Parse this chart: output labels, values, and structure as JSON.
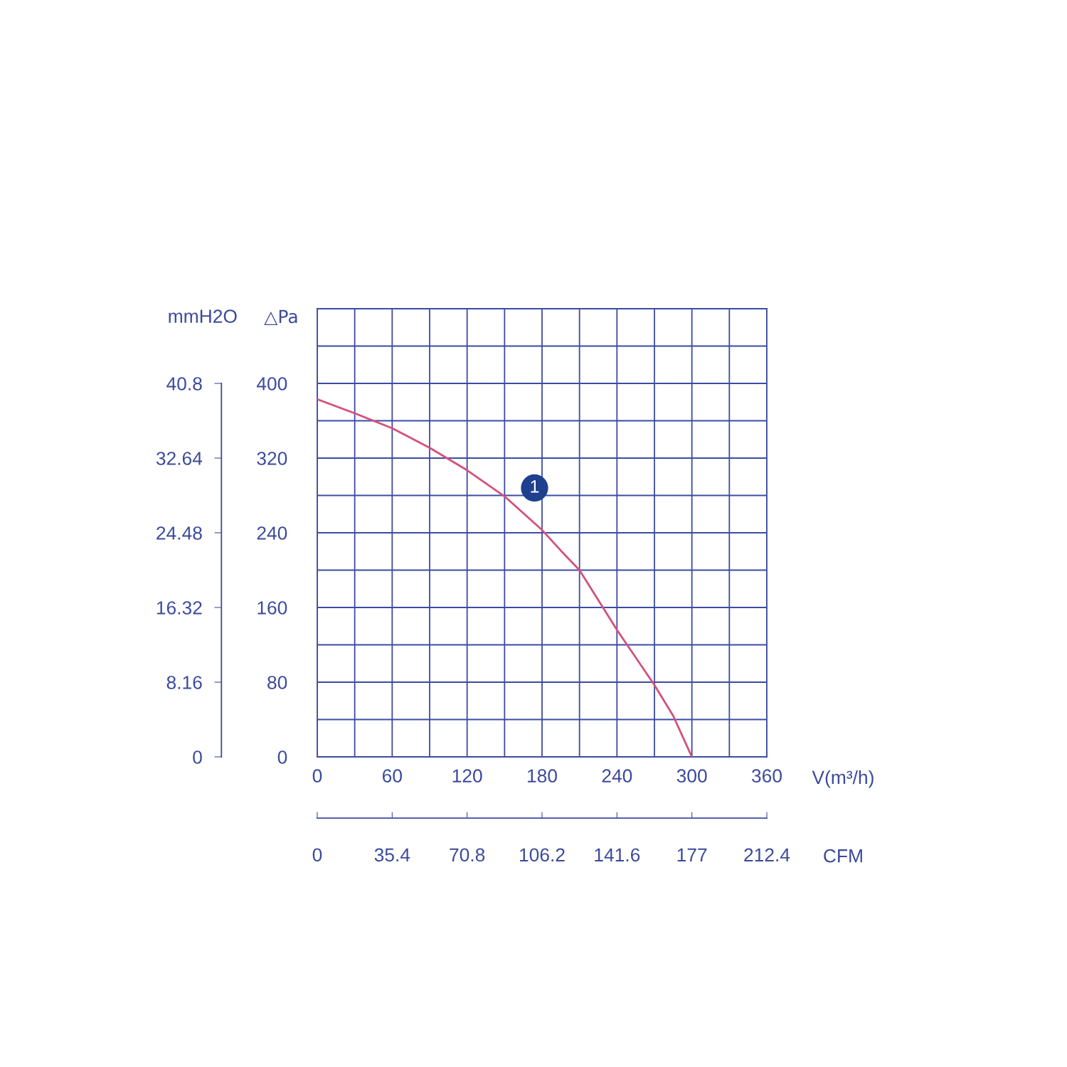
{
  "chart_data": {
    "type": "line",
    "xlabel": "V(m³/h)",
    "ylabel": "△Pa",
    "y2label": "mmH2O",
    "x2label": "CFM",
    "x": [
      0,
      30,
      60,
      90,
      120,
      150,
      180,
      195,
      210,
      240,
      270,
      285,
      300
    ],
    "series": [
      {
        "color": "#d4507c",
        "values": [
          383,
          368,
          352,
          331,
          307,
          279,
          243,
          221,
          200,
          136,
          77,
          44,
          0
        ]
      }
    ],
    "xlim": [
      0,
      360
    ],
    "xticks": [
      0,
      {
        "value": 30,
        "label": null
      },
      60,
      {
        "value": 90,
        "label": null
      },
      120,
      {
        "value": 150,
        "label": null
      },
      180,
      {
        "value": 210,
        "label": null
      },
      240,
      {
        "value": 270,
        "label": null
      },
      300,
      {
        "value": 330,
        "label": null
      },
      360
    ],
    "ylim": [
      0,
      480
    ],
    "yticks": [
      0,
      {
        "value": 40,
        "label": null
      },
      80,
      {
        "value": 120,
        "label": null
      },
      160,
      {
        "value": 200,
        "label": null
      },
      240,
      {
        "value": 280,
        "label": null
      },
      320,
      {
        "value": 360,
        "label": null
      },
      400,
      {
        "value": 440,
        "label": null
      },
      {
        "value": 480,
        "label": null
      }
    ],
    "y2lim": [
      0,
      48.96
    ],
    "y2ticks": [
      0,
      8.16,
      16.32,
      24.48,
      32.64,
      40.8
    ],
    "x2lim": [
      0,
      212.4
    ],
    "x2ticks": [
      0,
      35.4,
      70.8,
      106.2,
      141.6,
      177,
      212.4
    ],
    "grid": true,
    "marker": "none",
    "line_style": "solid",
    "annotations": [
      {
        "text": "1",
        "x": 174,
        "y": 288
      }
    ]
  }
}
